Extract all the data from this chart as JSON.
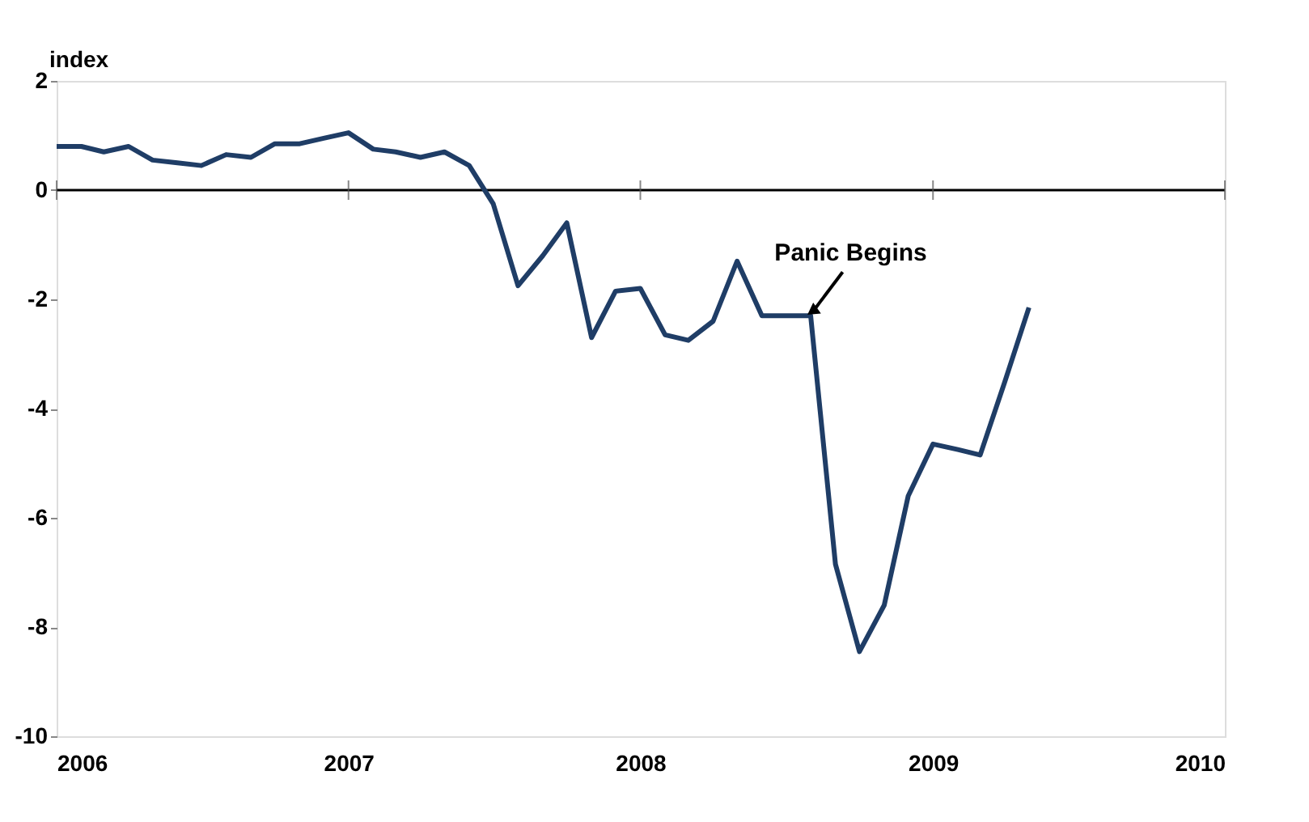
{
  "chart_data": {
    "type": "line",
    "ylabel": "index",
    "x": [
      "2006-01",
      "2006-02",
      "2006-03",
      "2006-04",
      "2006-05",
      "2006-06",
      "2006-07",
      "2006-08",
      "2006-09",
      "2006-10",
      "2006-11",
      "2006-12",
      "2007-01",
      "2007-02",
      "2007-03",
      "2007-04",
      "2007-05",
      "2007-06",
      "2007-07",
      "2007-08",
      "2007-09",
      "2007-10",
      "2007-11",
      "2007-12",
      "2008-01",
      "2008-02",
      "2008-03",
      "2008-04",
      "2008-05",
      "2008-06",
      "2008-07",
      "2008-08",
      "2008-09",
      "2008-10",
      "2008-11",
      "2008-12",
      "2009-01",
      "2009-02",
      "2009-03",
      "2009-04",
      "2009-05"
    ],
    "series": [
      {
        "color": "#1f3d66",
        "values": [
          0.8,
          0.8,
          0.7,
          0.8,
          0.55,
          0.5,
          0.45,
          0.65,
          0.6,
          0.85,
          0.85,
          0.95,
          1.05,
          0.75,
          0.7,
          0.6,
          0.7,
          0.45,
          -0.25,
          -1.75,
          -1.2,
          -0.6,
          -2.7,
          -1.85,
          -1.8,
          -2.65,
          -2.75,
          -2.4,
          -1.3,
          -2.3,
          -2.3,
          -2.3,
          -6.85,
          -8.45,
          -7.6,
          -5.6,
          -4.65,
          -4.75,
          -4.85,
          -3.5,
          -2.15
        ]
      }
    ],
    "xlim": [
      "2006",
      "2010"
    ],
    "xticks": [
      "2006",
      "2007",
      "2008",
      "2009",
      "2010"
    ],
    "ylim": [
      -10,
      2
    ],
    "yticks": [
      -10,
      -8,
      -6,
      -4,
      -2,
      0,
      2
    ],
    "ref_lines": [
      {
        "axis": "y",
        "value": 0
      }
    ],
    "annotations": [
      {
        "text": "Panic Begins",
        "x": "2008-08",
        "y": -2.3
      }
    ],
    "grid": false,
    "legend": false,
    "marker": "none",
    "line_style": "solid"
  }
}
